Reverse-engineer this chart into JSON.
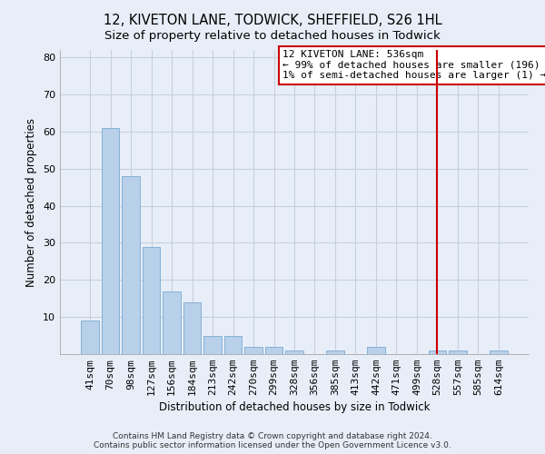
{
  "title": "12, KIVETON LANE, TODWICK, SHEFFIELD, S26 1HL",
  "subtitle": "Size of property relative to detached houses in Todwick",
  "xlabel": "Distribution of detached houses by size in Todwick",
  "ylabel": "Number of detached properties",
  "categories": [
    "41sqm",
    "70sqm",
    "98sqm",
    "127sqm",
    "156sqm",
    "184sqm",
    "213sqm",
    "242sqm",
    "270sqm",
    "299sqm",
    "328sqm",
    "356sqm",
    "385sqm",
    "413sqm",
    "442sqm",
    "471sqm",
    "499sqm",
    "528sqm",
    "557sqm",
    "585sqm",
    "614sqm"
  ],
  "values": [
    9,
    61,
    48,
    29,
    17,
    14,
    5,
    5,
    2,
    2,
    1,
    0,
    1,
    0,
    2,
    0,
    0,
    1,
    1,
    0,
    1
  ],
  "bar_color": "#b8d0ea",
  "bar_edgecolor": "#7aaad0",
  "vline_x_index": 17,
  "vline_color": "#cc0000",
  "annotation_text": "12 KIVETON LANE: 536sqm\n← 99% of detached houses are smaller (196)\n1% of semi-detached houses are larger (1) →",
  "annotation_box_facecolor": "#ffffff",
  "annotation_box_edgecolor": "#cc0000",
  "ylim": [
    0,
    82
  ],
  "yticks": [
    10,
    20,
    30,
    40,
    50,
    60,
    70,
    80
  ],
  "background_color": "#e8eef8",
  "grid_color": "#c8d0dc",
  "footer_text": "Contains HM Land Registry data © Crown copyright and database right 2024.\nContains public sector information licensed under the Open Government Licence v3.0.",
  "title_fontsize": 10.5,
  "subtitle_fontsize": 9.5,
  "xlabel_fontsize": 8.5,
  "ylabel_fontsize": 8.5,
  "tick_fontsize": 8,
  "annotation_fontsize": 8,
  "footer_fontsize": 6.5
}
